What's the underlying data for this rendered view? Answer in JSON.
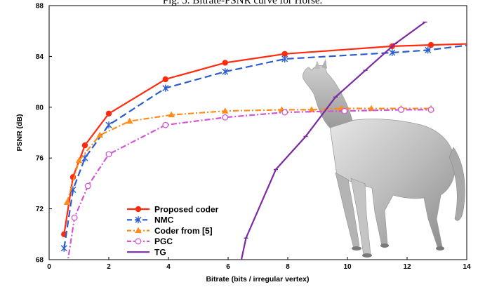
{
  "caption": "Fig. 5.   Bitrate-PSNR curve for Horse.",
  "chart_data": {
    "type": "line",
    "title": "",
    "xlabel": "Bitrate (bits / irregular vertex)",
    "ylabel": "PSNR (dB)",
    "xlim": [
      0,
      14
    ],
    "ylim": [
      68,
      88
    ],
    "xticks": [
      0,
      2,
      4,
      6,
      8,
      10,
      12,
      14
    ],
    "yticks": [
      68,
      72,
      76,
      80,
      84,
      88
    ],
    "grid": false,
    "legend_position": "bottom-left",
    "series": [
      {
        "name": "Proposed coder",
        "color": "#ff2a10",
        "dash": "",
        "marker": "dot",
        "x": [
          0.5,
          0.8,
          1.2,
          2.0,
          3.9,
          5.9,
          7.9,
          11.5,
          12.8,
          14.2
        ],
        "y": [
          70.0,
          74.5,
          77.0,
          79.5,
          82.2,
          83.5,
          84.2,
          84.8,
          84.9,
          85.0
        ]
      },
      {
        "name": "NMC",
        "color": "#2a5bd0",
        "dash": "10,5",
        "marker": "star",
        "x": [
          0.5,
          0.8,
          1.2,
          2.0,
          3.9,
          5.9,
          7.9,
          11.5,
          12.7,
          14.1
        ],
        "y": [
          68.9,
          73.5,
          76.0,
          78.6,
          81.5,
          82.8,
          83.8,
          84.3,
          84.5,
          84.9
        ]
      },
      {
        "name": "Coder from [5]",
        "color": "#ff8c1a",
        "dash": "8,3,2,3",
        "marker": "triangle",
        "x": [
          0.6,
          1.0,
          1.7,
          2.7,
          4.1,
          5.9,
          7.8,
          8.8,
          9.8,
          10.8,
          11.8,
          12.8
        ],
        "y": [
          72.5,
          75.8,
          77.8,
          78.9,
          79.4,
          79.7,
          79.8,
          79.8,
          79.9,
          79.9,
          79.9,
          79.9
        ]
      },
      {
        "name": "PGC",
        "color": "#d256d2",
        "dash": "8,3,2,3",
        "marker": "circle",
        "x": [
          0.6,
          0.85,
          1.3,
          2.0,
          3.9,
          5.9,
          7.9,
          9.9,
          11.8,
          12.8
        ],
        "y": [
          67.5,
          71.3,
          73.8,
          76.3,
          78.6,
          79.2,
          79.6,
          79.7,
          79.8,
          79.8
        ]
      },
      {
        "name": "TG",
        "color": "#7a2ba0",
        "dash": "",
        "marker": "tick",
        "x": [
          6.4,
          6.6,
          7.6,
          8.6,
          9.6,
          10.6,
          11.6,
          12.6
        ],
        "y": [
          67.5,
          69.7,
          75.1,
          77.7,
          80.8,
          82.9,
          85.0,
          86.7
        ]
      }
    ]
  },
  "image": {
    "subject": "horse-model"
  }
}
